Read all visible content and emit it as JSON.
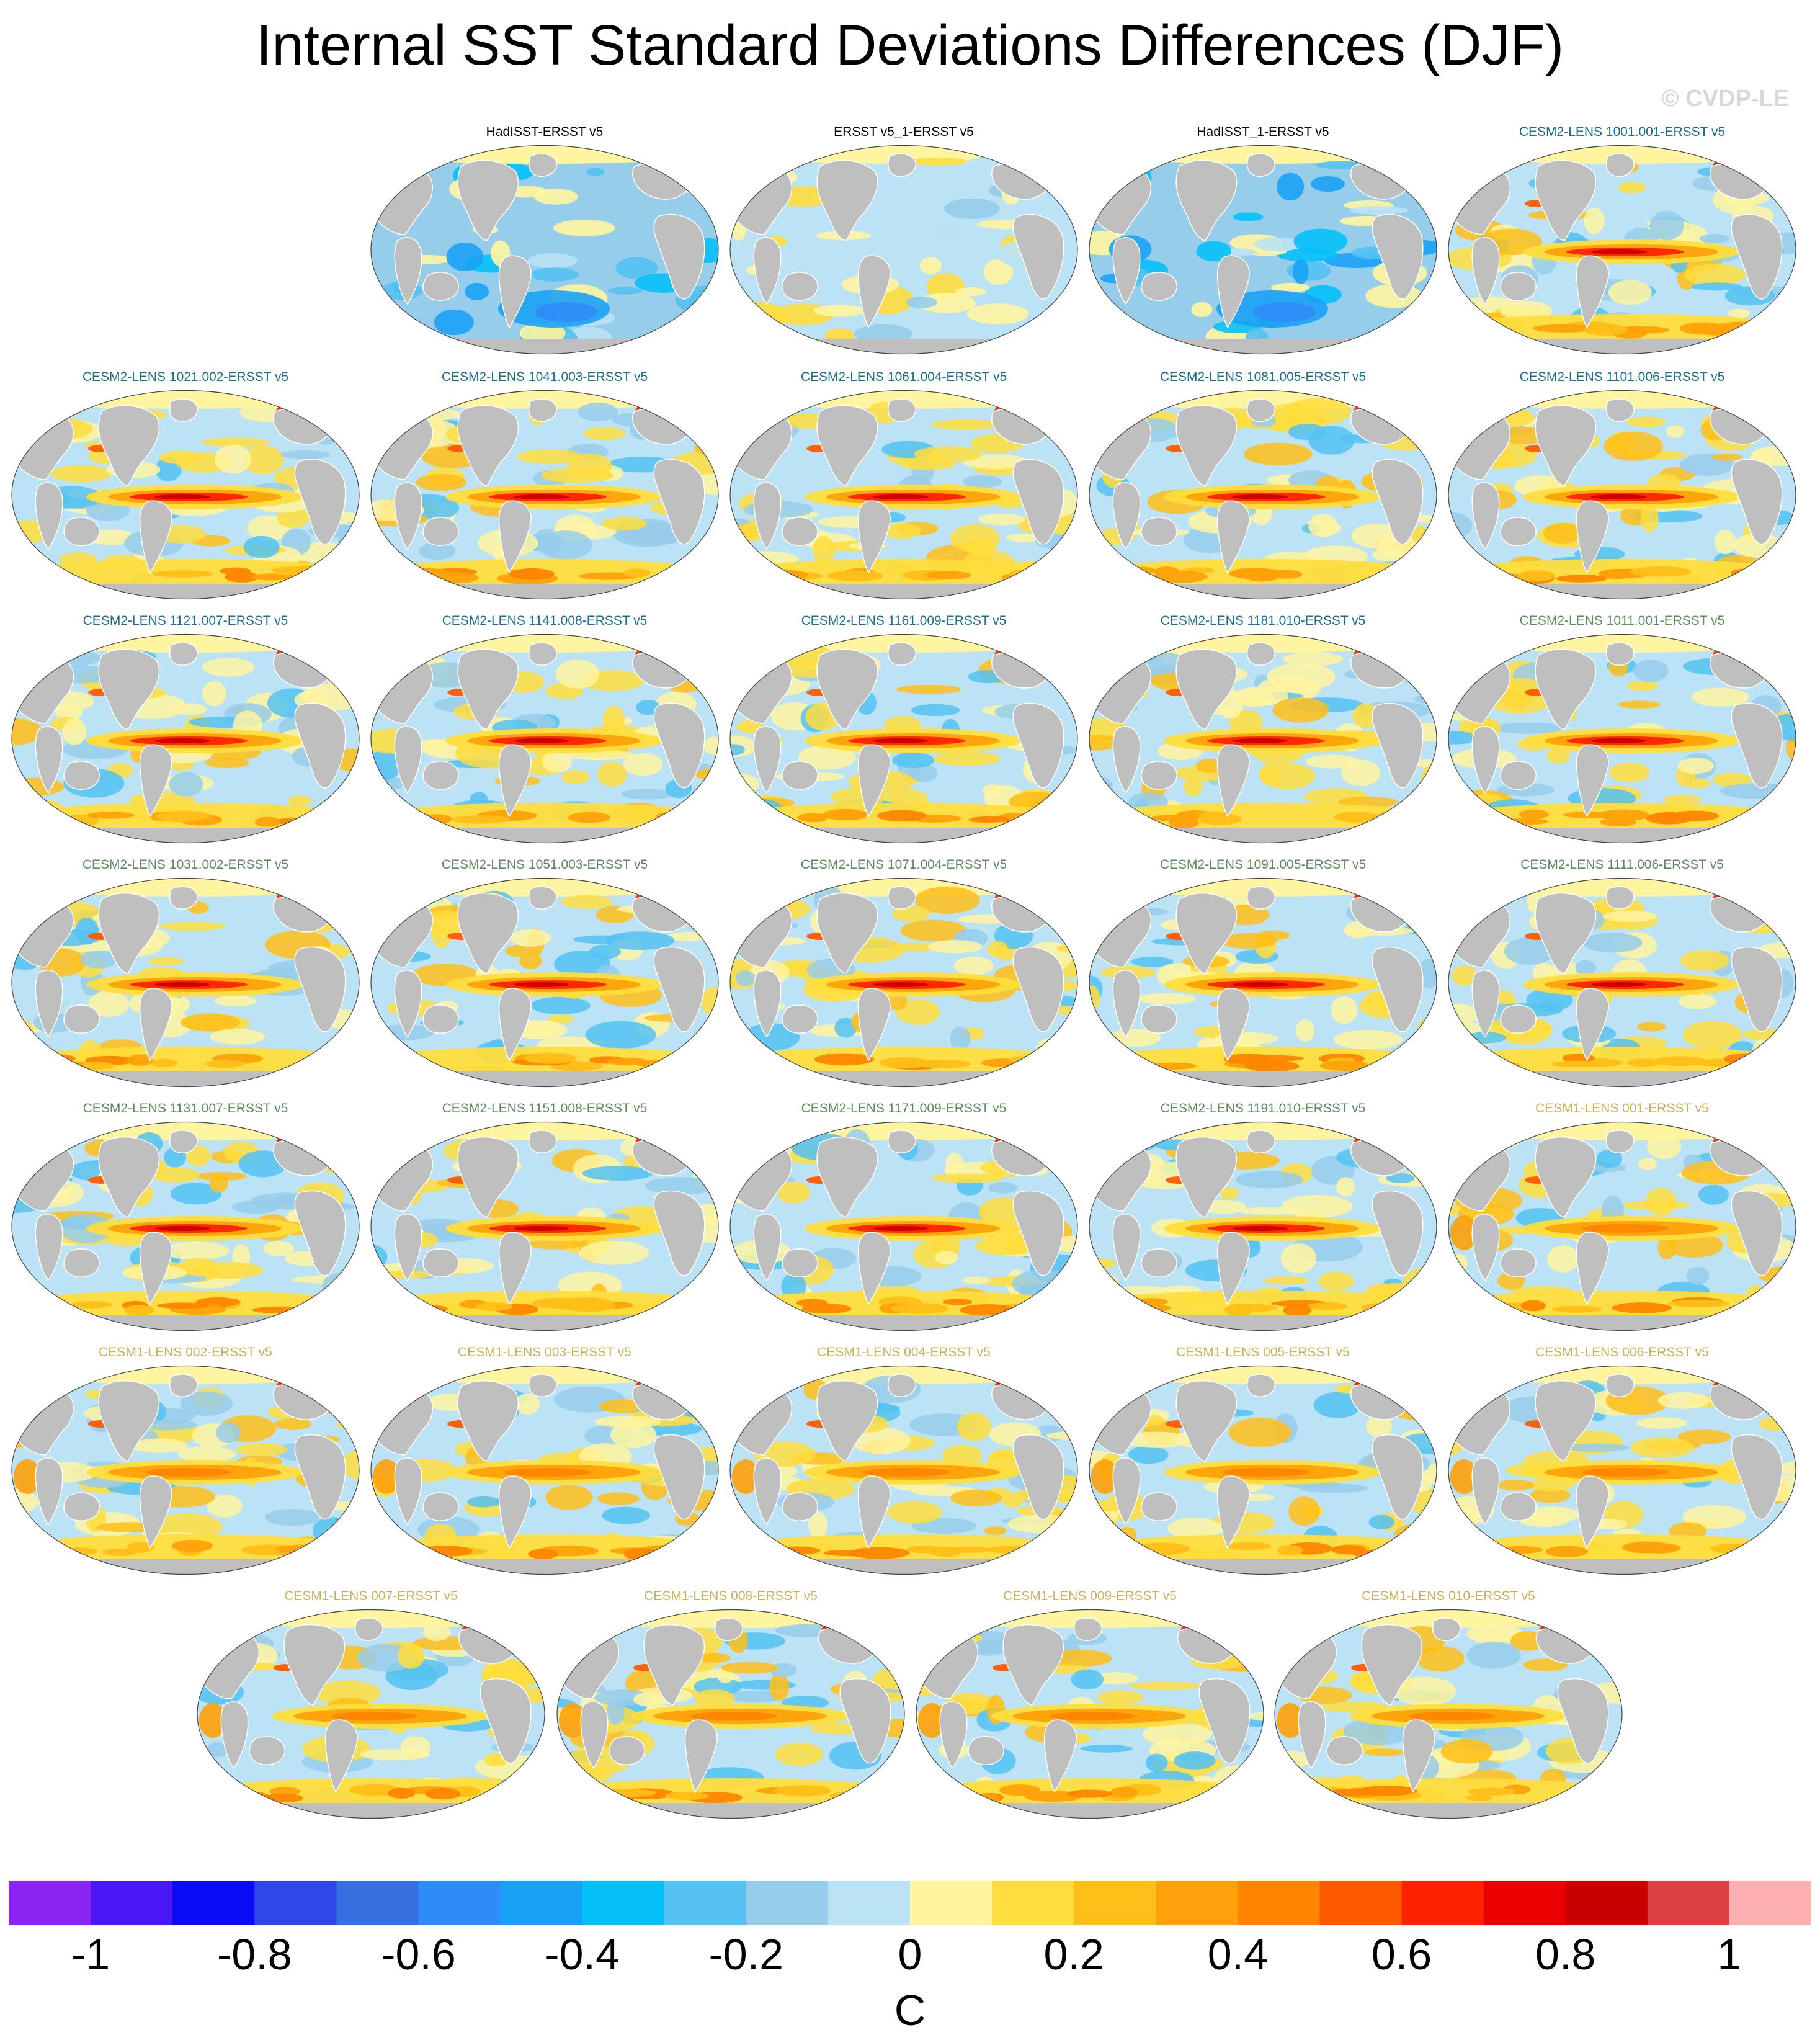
{
  "title": "Internal SST Standard Deviations Differences (DJF)",
  "copyright": "© CVDP-LE",
  "group_colors": {
    "obs": "#000000",
    "cesm2_a": "#1a6f8f",
    "cesm2_b": "#5f8a5f",
    "cesm1": "#c8b25a"
  },
  "land_color": "#bfbfbf",
  "chart_data": {
    "type": "heatmap",
    "variable": "SST standard deviation difference",
    "season": "DJF",
    "units": "C",
    "colorbar": {
      "levels": [
        -1,
        -0.9,
        -0.8,
        -0.7,
        -0.6,
        -0.5,
        -0.4,
        -0.3,
        -0.2,
        -0.1,
        0,
        0.1,
        0.2,
        0.3,
        0.4,
        0.5,
        0.6,
        0.7,
        0.8,
        0.9,
        1
      ],
      "tick_labels": [
        "-1",
        "-0.8",
        "-0.6",
        "-0.4",
        "-0.2",
        "0",
        "0.2",
        "0.4",
        "0.6",
        "0.8",
        "1"
      ],
      "tick_values": [
        -1,
        -0.8,
        -0.6,
        -0.4,
        -0.2,
        0,
        0.2,
        0.4,
        0.6,
        0.8,
        1
      ],
      "colors": [
        "#8a25f2",
        "#4a18f5",
        "#0a0af5",
        "#2e47e6",
        "#356fe0",
        "#2f8cf7",
        "#19a2f5",
        "#06c0fa",
        "#54c2f2",
        "#96cdea",
        "#bbe2f5",
        "#fff5a0",
        "#ffdd3c",
        "#ffbe18",
        "#ffa10a",
        "#ff8500",
        "#ff5a00",
        "#ff2200",
        "#ea0000",
        "#c80000",
        "#dd4040",
        "#ffb0b0"
      ]
    },
    "panels": [
      {
        "label": "HadISST-ERSST v5",
        "group": "obs",
        "pattern": "obs_cool"
      },
      {
        "label": "ERSST v5_1-ERSST v5",
        "group": "obs",
        "pattern": "obs_mixed"
      },
      {
        "label": "HadISST_1-ERSST v5",
        "group": "obs",
        "pattern": "obs_cool"
      },
      {
        "label": "CESM2-LENS 1001.001-ERSST v5",
        "group": "cesm2_a",
        "pattern": "model"
      },
      {
        "label": "CESM2-LENS 1021.002-ERSST v5",
        "group": "cesm2_a",
        "pattern": "model"
      },
      {
        "label": "CESM2-LENS 1041.003-ERSST v5",
        "group": "cesm2_a",
        "pattern": "model"
      },
      {
        "label": "CESM2-LENS 1061.004-ERSST v5",
        "group": "cesm2_a",
        "pattern": "model"
      },
      {
        "label": "CESM2-LENS 1081.005-ERSST v5",
        "group": "cesm2_a",
        "pattern": "model"
      },
      {
        "label": "CESM2-LENS 1101.006-ERSST v5",
        "group": "cesm2_a",
        "pattern": "model"
      },
      {
        "label": "CESM2-LENS 1121.007-ERSST v5",
        "group": "cesm2_a",
        "pattern": "model"
      },
      {
        "label": "CESM2-LENS 1141.008-ERSST v5",
        "group": "cesm2_a",
        "pattern": "model"
      },
      {
        "label": "CESM2-LENS 1161.009-ERSST v5",
        "group": "cesm2_a",
        "pattern": "model"
      },
      {
        "label": "CESM2-LENS 1181.010-ERSST v5",
        "group": "cesm2_a",
        "pattern": "model"
      },
      {
        "label": "CESM2-LENS 1011.001-ERSST v5",
        "group": "cesm2_b",
        "pattern": "model"
      },
      {
        "label": "CESM2-LENS 1031.002-ERSST v5",
        "group": "cesm2_b",
        "pattern": "model"
      },
      {
        "label": "CESM2-LENS 1051.003-ERSST v5",
        "group": "cesm2_b",
        "pattern": "model"
      },
      {
        "label": "CESM2-LENS 1071.004-ERSST v5",
        "group": "cesm2_b",
        "pattern": "model"
      },
      {
        "label": "CESM2-LENS 1091.005-ERSST v5",
        "group": "cesm2_b",
        "pattern": "model"
      },
      {
        "label": "CESM2-LENS 1111.006-ERSST v5",
        "group": "cesm2_b",
        "pattern": "model"
      },
      {
        "label": "CESM2-LENS 1131.007-ERSST v5",
        "group": "cesm2_b",
        "pattern": "model"
      },
      {
        "label": "CESM2-LENS 1151.008-ERSST v5",
        "group": "cesm2_b",
        "pattern": "model"
      },
      {
        "label": "CESM2-LENS 1171.009-ERSST v5",
        "group": "cesm2_b",
        "pattern": "model"
      },
      {
        "label": "CESM2-LENS 1191.010-ERSST v5",
        "group": "cesm2_b",
        "pattern": "model"
      },
      {
        "label": "CESM1-LENS 001-ERSST v5",
        "group": "cesm1",
        "pattern": "model1"
      },
      {
        "label": "CESM1-LENS 002-ERSST v5",
        "group": "cesm1",
        "pattern": "model1"
      },
      {
        "label": "CESM1-LENS 003-ERSST v5",
        "group": "cesm1",
        "pattern": "model1"
      },
      {
        "label": "CESM1-LENS 004-ERSST v5",
        "group": "cesm1",
        "pattern": "model1"
      },
      {
        "label": "CESM1-LENS 005-ERSST v5",
        "group": "cesm1",
        "pattern": "model1"
      },
      {
        "label": "CESM1-LENS 006-ERSST v5",
        "group": "cesm1",
        "pattern": "model1"
      },
      {
        "label": "CESM1-LENS 007-ERSST v5",
        "group": "cesm1",
        "pattern": "model1"
      },
      {
        "label": "CESM1-LENS 008-ERSST v5",
        "group": "cesm1",
        "pattern": "model1"
      },
      {
        "label": "CESM1-LENS 009-ERSST v5",
        "group": "cesm1",
        "pattern": "model1"
      },
      {
        "label": "CESM1-LENS 010-ERSST v5",
        "group": "cesm1",
        "pattern": "model1"
      }
    ]
  }
}
